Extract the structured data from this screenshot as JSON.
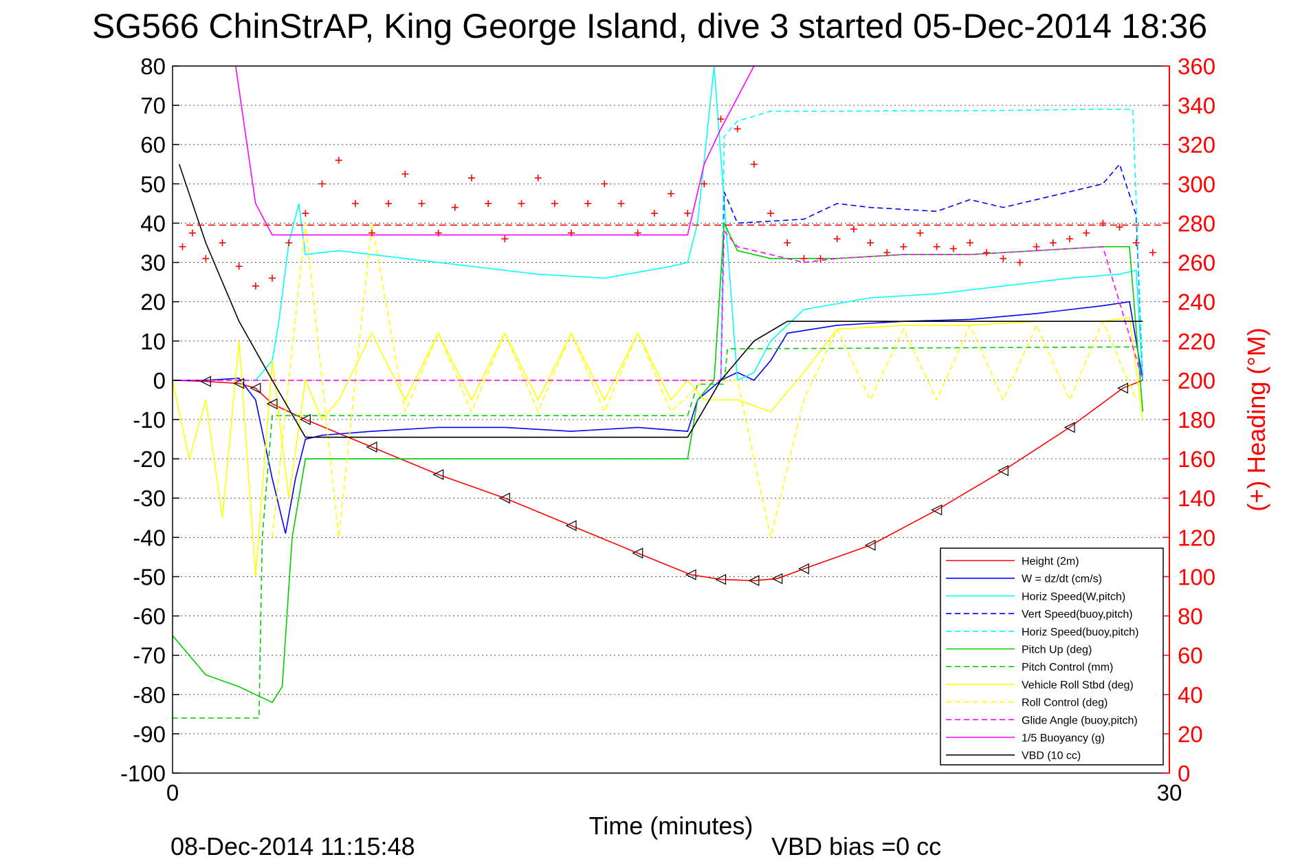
{
  "chart_data": {
    "type": "line",
    "title": "SG566 ChinStrAP, King George Island, dive 3 started 05-Dec-2014 18:36",
    "xlabel": "Time (minutes)",
    "ylabel": "",
    "y2label": "(+) Heading (°M)",
    "xlim": [
      0,
      30
    ],
    "ylim": [
      -100,
      80
    ],
    "y2lim": [
      0,
      360
    ],
    "xticks": [
      "0",
      "30"
    ],
    "yticks": [
      "80",
      "70",
      "60",
      "50",
      "40",
      "30",
      "20",
      "10",
      "0",
      "-10",
      "-20",
      "-30",
      "-40",
      "-50",
      "-60",
      "-70",
      "-80",
      "-90",
      "-100"
    ],
    "y2ticks": [
      "360",
      "340",
      "320",
      "300",
      "280",
      "260",
      "240",
      "220",
      "200",
      "180",
      "160",
      "140",
      "120",
      "100",
      "80",
      "60",
      "40",
      "20",
      "0"
    ],
    "grid": true,
    "legend_position": "bottom-right",
    "footer_left": "08-Dec-2014 11:15:48",
    "footer_right": "VBD bias =0 cc",
    "series": [
      {
        "name": "Height (2m)",
        "color": "#ff0000",
        "dash": "solid",
        "x": [
          0,
          1,
          2,
          2.5,
          3,
          4,
          6,
          8,
          10,
          12,
          14,
          15.6,
          16.5,
          17.5,
          18.2,
          19,
          21,
          23,
          25,
          27,
          28.6,
          29.2
        ],
        "y": [
          0,
          -0.3,
          -0.8,
          -2,
          -6,
          -10,
          -17,
          -24,
          -30,
          -37,
          -44,
          -49.5,
          -50.7,
          -51,
          -50.5,
          -48,
          -42,
          -33,
          -23,
          -12,
          -2,
          0
        ]
      },
      {
        "name": "W = dz/dt (cm/s)",
        "color": "#0000ff",
        "dash": "solid",
        "x": [
          0,
          1,
          2,
          2.5,
          3,
          3.4,
          3.7,
          4,
          4.5,
          6,
          8,
          10,
          12,
          14,
          15.5,
          15.8,
          16.5,
          17,
          17.5,
          18,
          18.5,
          20,
          22,
          24,
          26,
          28,
          28.8,
          29.2
        ],
        "y": [
          0,
          0,
          0.5,
          -5,
          -25,
          -39,
          -25,
          -15,
          -14,
          -13,
          -12,
          -12,
          -13,
          -12,
          -13,
          -5,
          0,
          2,
          0,
          5,
          12,
          14,
          15,
          15.5,
          17,
          19,
          20,
          0
        ]
      },
      {
        "name": "Horiz Speed(W,pitch)",
        "color": "#00ffff",
        "dash": "solid",
        "x": [
          2.5,
          3,
          3.2,
          3.5,
          3.8,
          4,
          5,
          7,
          9,
          11,
          13,
          15,
          15.5,
          15.8,
          16.3,
          17,
          17.5,
          18,
          19,
          21,
          23,
          25,
          27,
          28.5,
          29,
          29.2
        ],
        "y": [
          0,
          5,
          15,
          35,
          45,
          32,
          33,
          31,
          29,
          27,
          26,
          29,
          30,
          40,
          80,
          0,
          2,
          10,
          18,
          21,
          22,
          24,
          26,
          27,
          28,
          0
        ]
      },
      {
        "name": "Vert Speed(buoy,pitch)",
        "color": "#0000ff",
        "dash": "dashed",
        "x": [
          16.5,
          16.6,
          17,
          19,
          20,
          21,
          23,
          24,
          25,
          26,
          27,
          28,
          28.5,
          29,
          29.2
        ],
        "y": [
          0,
          48,
          40,
          41,
          45,
          44,
          43,
          46,
          44,
          46,
          48,
          50,
          55,
          42,
          0
        ]
      },
      {
        "name": "Horiz Speed(buoy,pitch)",
        "color": "#00ffff",
        "dash": "dashed",
        "x": [
          16.5,
          16.6,
          17,
          18,
          20,
          22,
          24,
          26,
          28,
          28.9,
          29.2
        ],
        "y": [
          0,
          62,
          66,
          68.5,
          68.5,
          68.6,
          68.6,
          68.8,
          69,
          69,
          0
        ]
      },
      {
        "name": "Pitch Up (deg)",
        "color": "#00cc00",
        "dash": "solid",
        "x": [
          0,
          1,
          2,
          2.5,
          3,
          3.3,
          3.6,
          4,
          6,
          8,
          10,
          12,
          14,
          15.5,
          15.8,
          16.3,
          16.6,
          17,
          18,
          20,
          22,
          24,
          26,
          28,
          28.8,
          29.2
        ],
        "y": [
          -65,
          -75,
          -78,
          -80,
          -82,
          -78,
          -40,
          -20,
          -20,
          -20,
          -20,
          -20,
          -20,
          -20,
          -5,
          0,
          40,
          33,
          31,
          31,
          32,
          32,
          33,
          34,
          34,
          -8
        ]
      },
      {
        "name": "Pitch Control (mm)",
        "color": "#00cc00",
        "dash": "dashed",
        "x": [
          0,
          2.6,
          2.7,
          3,
          3.3,
          15.5,
          15.8,
          16.6,
          16.7,
          29.2
        ],
        "y": [
          -86,
          -86,
          -40,
          -9,
          -9,
          -9,
          -1,
          -1,
          8,
          8.5
        ]
      },
      {
        "name": "Vehicle Roll Stbd (deg)",
        "color": "#ffff00",
        "dash": "solid",
        "x": [
          0,
          0.5,
          1,
          1.5,
          2,
          2.5,
          3,
          3.5,
          4,
          4.5,
          5,
          6,
          7,
          8,
          9,
          10,
          11,
          12,
          13,
          14,
          15,
          15.5,
          16,
          17,
          18,
          19,
          20,
          22,
          24,
          26,
          28,
          28.8,
          29.2
        ],
        "y": [
          0,
          -20,
          -5,
          -35,
          10,
          -50,
          5,
          -30,
          0,
          -10,
          -5,
          12,
          -5,
          12,
          -5,
          12,
          -5,
          12,
          -5,
          12,
          -5,
          0,
          -5,
          -5,
          -8,
          2,
          13,
          14,
          14,
          15,
          15,
          16,
          -10
        ]
      },
      {
        "name": "Roll Control (deg)",
        "color": "#ffff00",
        "dash": "dashed",
        "x": [
          3,
          4,
          5,
          6,
          7,
          8,
          9,
          10,
          11,
          12,
          13,
          14,
          15,
          16,
          17,
          18,
          19,
          20,
          21,
          22,
          23,
          24,
          25,
          26,
          27,
          28,
          29
        ],
        "y": [
          -40,
          40,
          -40,
          40,
          -8,
          12,
          -8,
          12,
          -8,
          12,
          -8,
          12,
          -8,
          0,
          0,
          -40,
          -5,
          13,
          -5,
          13,
          -5,
          14,
          -5,
          14,
          -5,
          15,
          -5
        ]
      },
      {
        "name": "Glide Angle (buoy,pitch)",
        "color": "#ff00ff",
        "dash": "dashed",
        "x": [
          0,
          16.5,
          16.6,
          17,
          18,
          19,
          20,
          22,
          24,
          26,
          28,
          29.2
        ],
        "y": [
          0,
          0,
          38,
          34,
          32,
          30,
          31,
          32,
          32,
          33,
          34,
          0
        ]
      },
      {
        "name": "1/5 Buoyancy (g)",
        "color": "#ff00ff",
        "dash": "solid",
        "x": [
          1.9,
          2.5,
          3,
          4,
          6,
          8,
          10,
          12,
          14,
          15,
          15.5,
          16,
          16.5,
          17,
          17.5
        ],
        "y": [
          80,
          45,
          37,
          37,
          37,
          37,
          37,
          37,
          37,
          37,
          37,
          55,
          64,
          72,
          80
        ]
      },
      {
        "name": "VBD (10 cc)",
        "color": "#000000",
        "dash": "solid",
        "x": [
          0.2,
          1,
          2,
          3,
          4,
          6,
          8,
          10,
          12,
          14,
          15.5,
          16.5,
          17.5,
          18.5,
          20,
          22,
          24,
          26,
          28,
          29.2
        ],
        "y": [
          55,
          35,
          15,
          0,
          -14.5,
          -14.5,
          -14.5,
          -14.5,
          -14.5,
          -14.5,
          -14.5,
          0,
          10,
          15,
          15,
          15,
          15,
          15,
          15,
          15
        ]
      }
    ],
    "heading": {
      "name": "(+) Heading",
      "color": "#ff0000",
      "target": 279,
      "x": [
        0.3,
        0.6,
        1,
        1.5,
        2,
        2.5,
        3,
        3.5,
        4,
        4.5,
        5,
        5.5,
        6,
        6.5,
        7,
        7.5,
        8,
        8.5,
        9,
        9.5,
        10,
        10.5,
        11,
        11.5,
        12,
        12.5,
        13,
        13.5,
        14,
        14.5,
        15,
        15.5,
        16,
        16.5,
        17,
        17.5,
        18,
        18.5,
        19,
        19.5,
        20,
        20.5,
        21,
        21.5,
        22,
        22.5,
        23,
        23.5,
        24,
        24.5,
        25,
        25.5,
        26,
        26.5,
        27,
        27.5,
        28,
        28.5,
        29,
        29.5
      ],
      "y": [
        268,
        275,
        262,
        270,
        258,
        248,
        252,
        270,
        285,
        300,
        312,
        290,
        275,
        290,
        305,
        290,
        275,
        288,
        303,
        290,
        272,
        290,
        303,
        290,
        275,
        290,
        300,
        290,
        275,
        285,
        295,
        285,
        300,
        333,
        328,
        310,
        285,
        270,
        262,
        262,
        272,
        277,
        270,
        265,
        268,
        275,
        268,
        267,
        270,
        265,
        262,
        260,
        268,
        270,
        272,
        275,
        280,
        278,
        270,
        265
      ]
    }
  }
}
